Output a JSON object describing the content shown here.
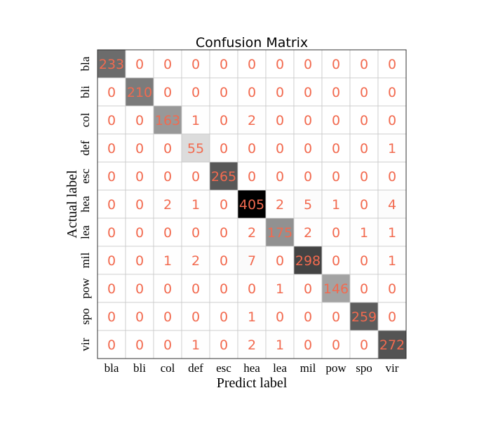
{
  "chart_data": {
    "type": "heatmap",
    "title": "Confusion Matrix",
    "xlabel": "Predict label",
    "ylabel": "Actual label",
    "x_categories": [
      "bla",
      "bli",
      "col",
      "def",
      "esc",
      "hea",
      "lea",
      "mil",
      "pow",
      "spo",
      "vir"
    ],
    "y_categories": [
      "bla",
      "bli",
      "col",
      "def",
      "esc",
      "hea",
      "lea",
      "mil",
      "pow",
      "spo",
      "vir"
    ],
    "values": [
      [
        233,
        0,
        0,
        0,
        0,
        0,
        0,
        0,
        0,
        0,
        0
      ],
      [
        0,
        210,
        0,
        0,
        0,
        0,
        0,
        0,
        0,
        0,
        0
      ],
      [
        0,
        0,
        163,
        1,
        0,
        2,
        0,
        0,
        0,
        0,
        0
      ],
      [
        0,
        0,
        0,
        55,
        0,
        0,
        0,
        0,
        0,
        0,
        1
      ],
      [
        0,
        0,
        0,
        0,
        265,
        0,
        0,
        0,
        0,
        0,
        0
      ],
      [
        0,
        0,
        2,
        1,
        0,
        405,
        2,
        5,
        1,
        0,
        4
      ],
      [
        0,
        0,
        0,
        0,
        0,
        2,
        175,
        2,
        0,
        1,
        1
      ],
      [
        0,
        0,
        1,
        2,
        0,
        7,
        0,
        298,
        0,
        0,
        1
      ],
      [
        0,
        0,
        0,
        0,
        0,
        0,
        1,
        0,
        146,
        0,
        0
      ],
      [
        0,
        0,
        0,
        0,
        0,
        1,
        0,
        0,
        0,
        259,
        0
      ],
      [
        0,
        0,
        0,
        1,
        0,
        2,
        1,
        0,
        0,
        0,
        272
      ]
    ],
    "colormap": "greys",
    "value_range": [
      0,
      405
    ],
    "grid": true,
    "text_color": "#f26a4f"
  }
}
